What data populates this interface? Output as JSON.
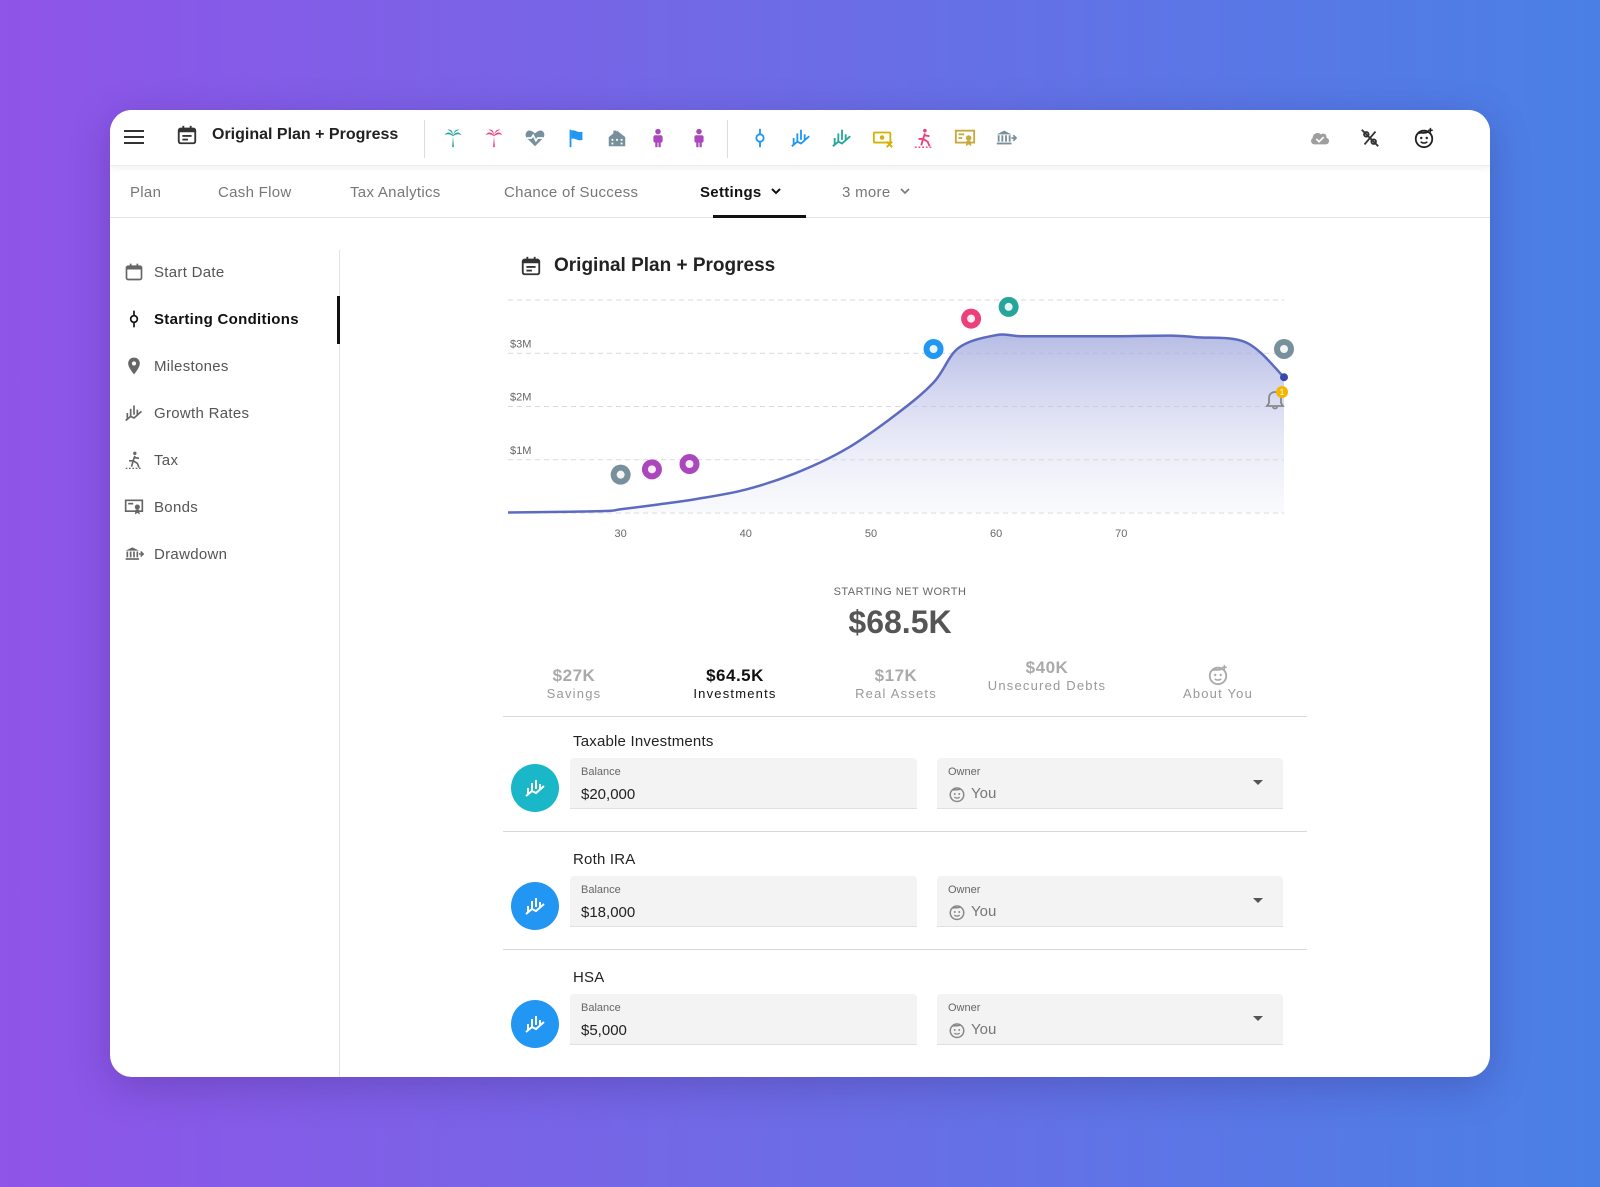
{
  "header": {
    "plan_title": "Original Plan + Progress",
    "milestone_icons": [
      {
        "name": "palm-tree-teal-icon",
        "color": "#26a69a"
      },
      {
        "name": "palm-tree-red-icon",
        "color": "#ec407a"
      },
      {
        "name": "heart-pulse-icon",
        "color": "#78909c"
      },
      {
        "name": "flag-icon",
        "color": "#2196f3"
      },
      {
        "name": "house-icon",
        "color": "#78909c"
      },
      {
        "name": "person-icon",
        "color": "#ab47bc"
      },
      {
        "name": "person-icon",
        "color": "#ab47bc"
      }
    ],
    "settings_icons": [
      {
        "name": "starting-conditions-icon",
        "color": "#2196f3"
      },
      {
        "name": "growth-rates-icon",
        "color": "#2196f3"
      },
      {
        "name": "growth-rates-icon",
        "color": "#26a69a"
      },
      {
        "name": "money-icon",
        "color": "#d4b106"
      },
      {
        "name": "tax-icon",
        "color": "#ec407a"
      },
      {
        "name": "bonds-icon",
        "color": "#c8a83a"
      },
      {
        "name": "drawdown-icon",
        "color": "#78909c"
      }
    ],
    "right_icons": [
      "cloud-check-icon",
      "percent-off-icon",
      "face-icon"
    ]
  },
  "tabs": [
    {
      "label": "Plan"
    },
    {
      "label": "Cash Flow"
    },
    {
      "label": "Tax Analytics"
    },
    {
      "label": "Chance of Success"
    },
    {
      "label": "Settings"
    },
    {
      "label": "3 more"
    }
  ],
  "sidebar": {
    "items": [
      {
        "label": "Start Date"
      },
      {
        "label": "Starting Conditions"
      },
      {
        "label": "Milestones"
      },
      {
        "label": "Growth Rates"
      },
      {
        "label": "Tax"
      },
      {
        "label": "Bonds"
      },
      {
        "label": "Drawdown"
      }
    ]
  },
  "main": {
    "title": "Original Plan + Progress",
    "net_worth_label": "STARTING NET WORTH",
    "net_worth_value": "$68.5K",
    "notification_count": "1",
    "categories": [
      {
        "value": "$27K",
        "label": "Savings"
      },
      {
        "value": "$64.5K",
        "label": "Investments"
      },
      {
        "value": "$17K",
        "label": "Real Assets"
      },
      {
        "value": "$40K",
        "label": "Unsecured Debts"
      },
      {
        "value": "",
        "label": "About You"
      }
    ],
    "accounts": [
      {
        "name": "Taxable Investments",
        "balance_label": "Balance",
        "balance": "$20,000",
        "owner_label": "Owner",
        "owner": "You",
        "icon_color": "#1ab7c9"
      },
      {
        "name": "Roth IRA",
        "balance_label": "Balance",
        "balance": "$18,000",
        "owner_label": "Owner",
        "owner": "You",
        "icon_color": "#2196f3"
      },
      {
        "name": "HSA",
        "balance_label": "Balance",
        "balance": "$5,000",
        "owner_label": "Owner",
        "owner": "You",
        "icon_color": "#2196f3"
      }
    ]
  },
  "chart_data": {
    "type": "area",
    "x": [
      21,
      25,
      29,
      30,
      33,
      36,
      40,
      44,
      48,
      52,
      55,
      57,
      60,
      62,
      66,
      70,
      74,
      76,
      80,
      83
    ],
    "values": [
      0.01,
      0.02,
      0.04,
      0.07,
      0.16,
      0.26,
      0.44,
      0.75,
      1.2,
      1.85,
      2.45,
      3.1,
      3.34,
      3.32,
      3.32,
      3.32,
      3.33,
      3.3,
      3.2,
      2.55
    ],
    "yunit": "$M",
    "ytick_labels": [
      "$1M",
      "$2M",
      "$3M"
    ],
    "ytick_values": [
      1,
      2,
      3
    ],
    "xtick_values": [
      30,
      40,
      50,
      60,
      70
    ],
    "ylim": [
      0,
      4
    ],
    "xlim": [
      21,
      83
    ],
    "line_color": "#5c6bc0",
    "grid": "dashed horizontal",
    "markers": [
      {
        "x": 30,
        "y": 0.72,
        "icon": "house-icon",
        "color": "#78909c"
      },
      {
        "x": 32.5,
        "y": 0.82,
        "icon": "person-icon",
        "color": "#ab47bc"
      },
      {
        "x": 35.5,
        "y": 0.92,
        "icon": "person-icon",
        "color": "#ab47bc"
      },
      {
        "x": 55,
        "y": 3.08,
        "icon": "flag-icon",
        "color": "#2196f3"
      },
      {
        "x": 58,
        "y": 3.65,
        "icon": "palm-tree-icon",
        "color": "#ec407a"
      },
      {
        "x": 61,
        "y": 3.87,
        "icon": "palm-tree-icon",
        "color": "#26a69a"
      },
      {
        "x": 83,
        "y": 3.08,
        "icon": "heart-pulse-icon",
        "color": "#78909c"
      }
    ]
  }
}
